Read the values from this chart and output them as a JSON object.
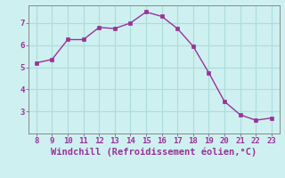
{
  "x": [
    8,
    9,
    10,
    11,
    12,
    13,
    14,
    15,
    16,
    17,
    18,
    19,
    20,
    21,
    22,
    23
  ],
  "y": [
    5.2,
    5.35,
    6.25,
    6.25,
    6.8,
    6.75,
    7.0,
    7.5,
    7.3,
    6.75,
    5.95,
    4.75,
    3.45,
    2.85,
    2.6,
    2.7
  ],
  "line_color": "#993399",
  "marker_color": "#993399",
  "bg_color": "#cff0f0",
  "grid_color": "#aadddd",
  "xlabel": "Windchill (Refroidissement éolien,°C)",
  "xlabel_color": "#993399",
  "tick_color": "#993399",
  "spine_color": "#888888",
  "xlim": [
    7.5,
    23.5
  ],
  "ylim": [
    2.0,
    7.8
  ],
  "yticks": [
    3,
    4,
    5,
    6,
    7
  ],
  "xticks": [
    8,
    9,
    10,
    11,
    12,
    13,
    14,
    15,
    16,
    17,
    18,
    19,
    20,
    21,
    22,
    23
  ],
  "tick_fontsize": 6.5,
  "xlabel_fontsize": 7.5,
  "marker_size": 2.5,
  "line_width": 1.0
}
